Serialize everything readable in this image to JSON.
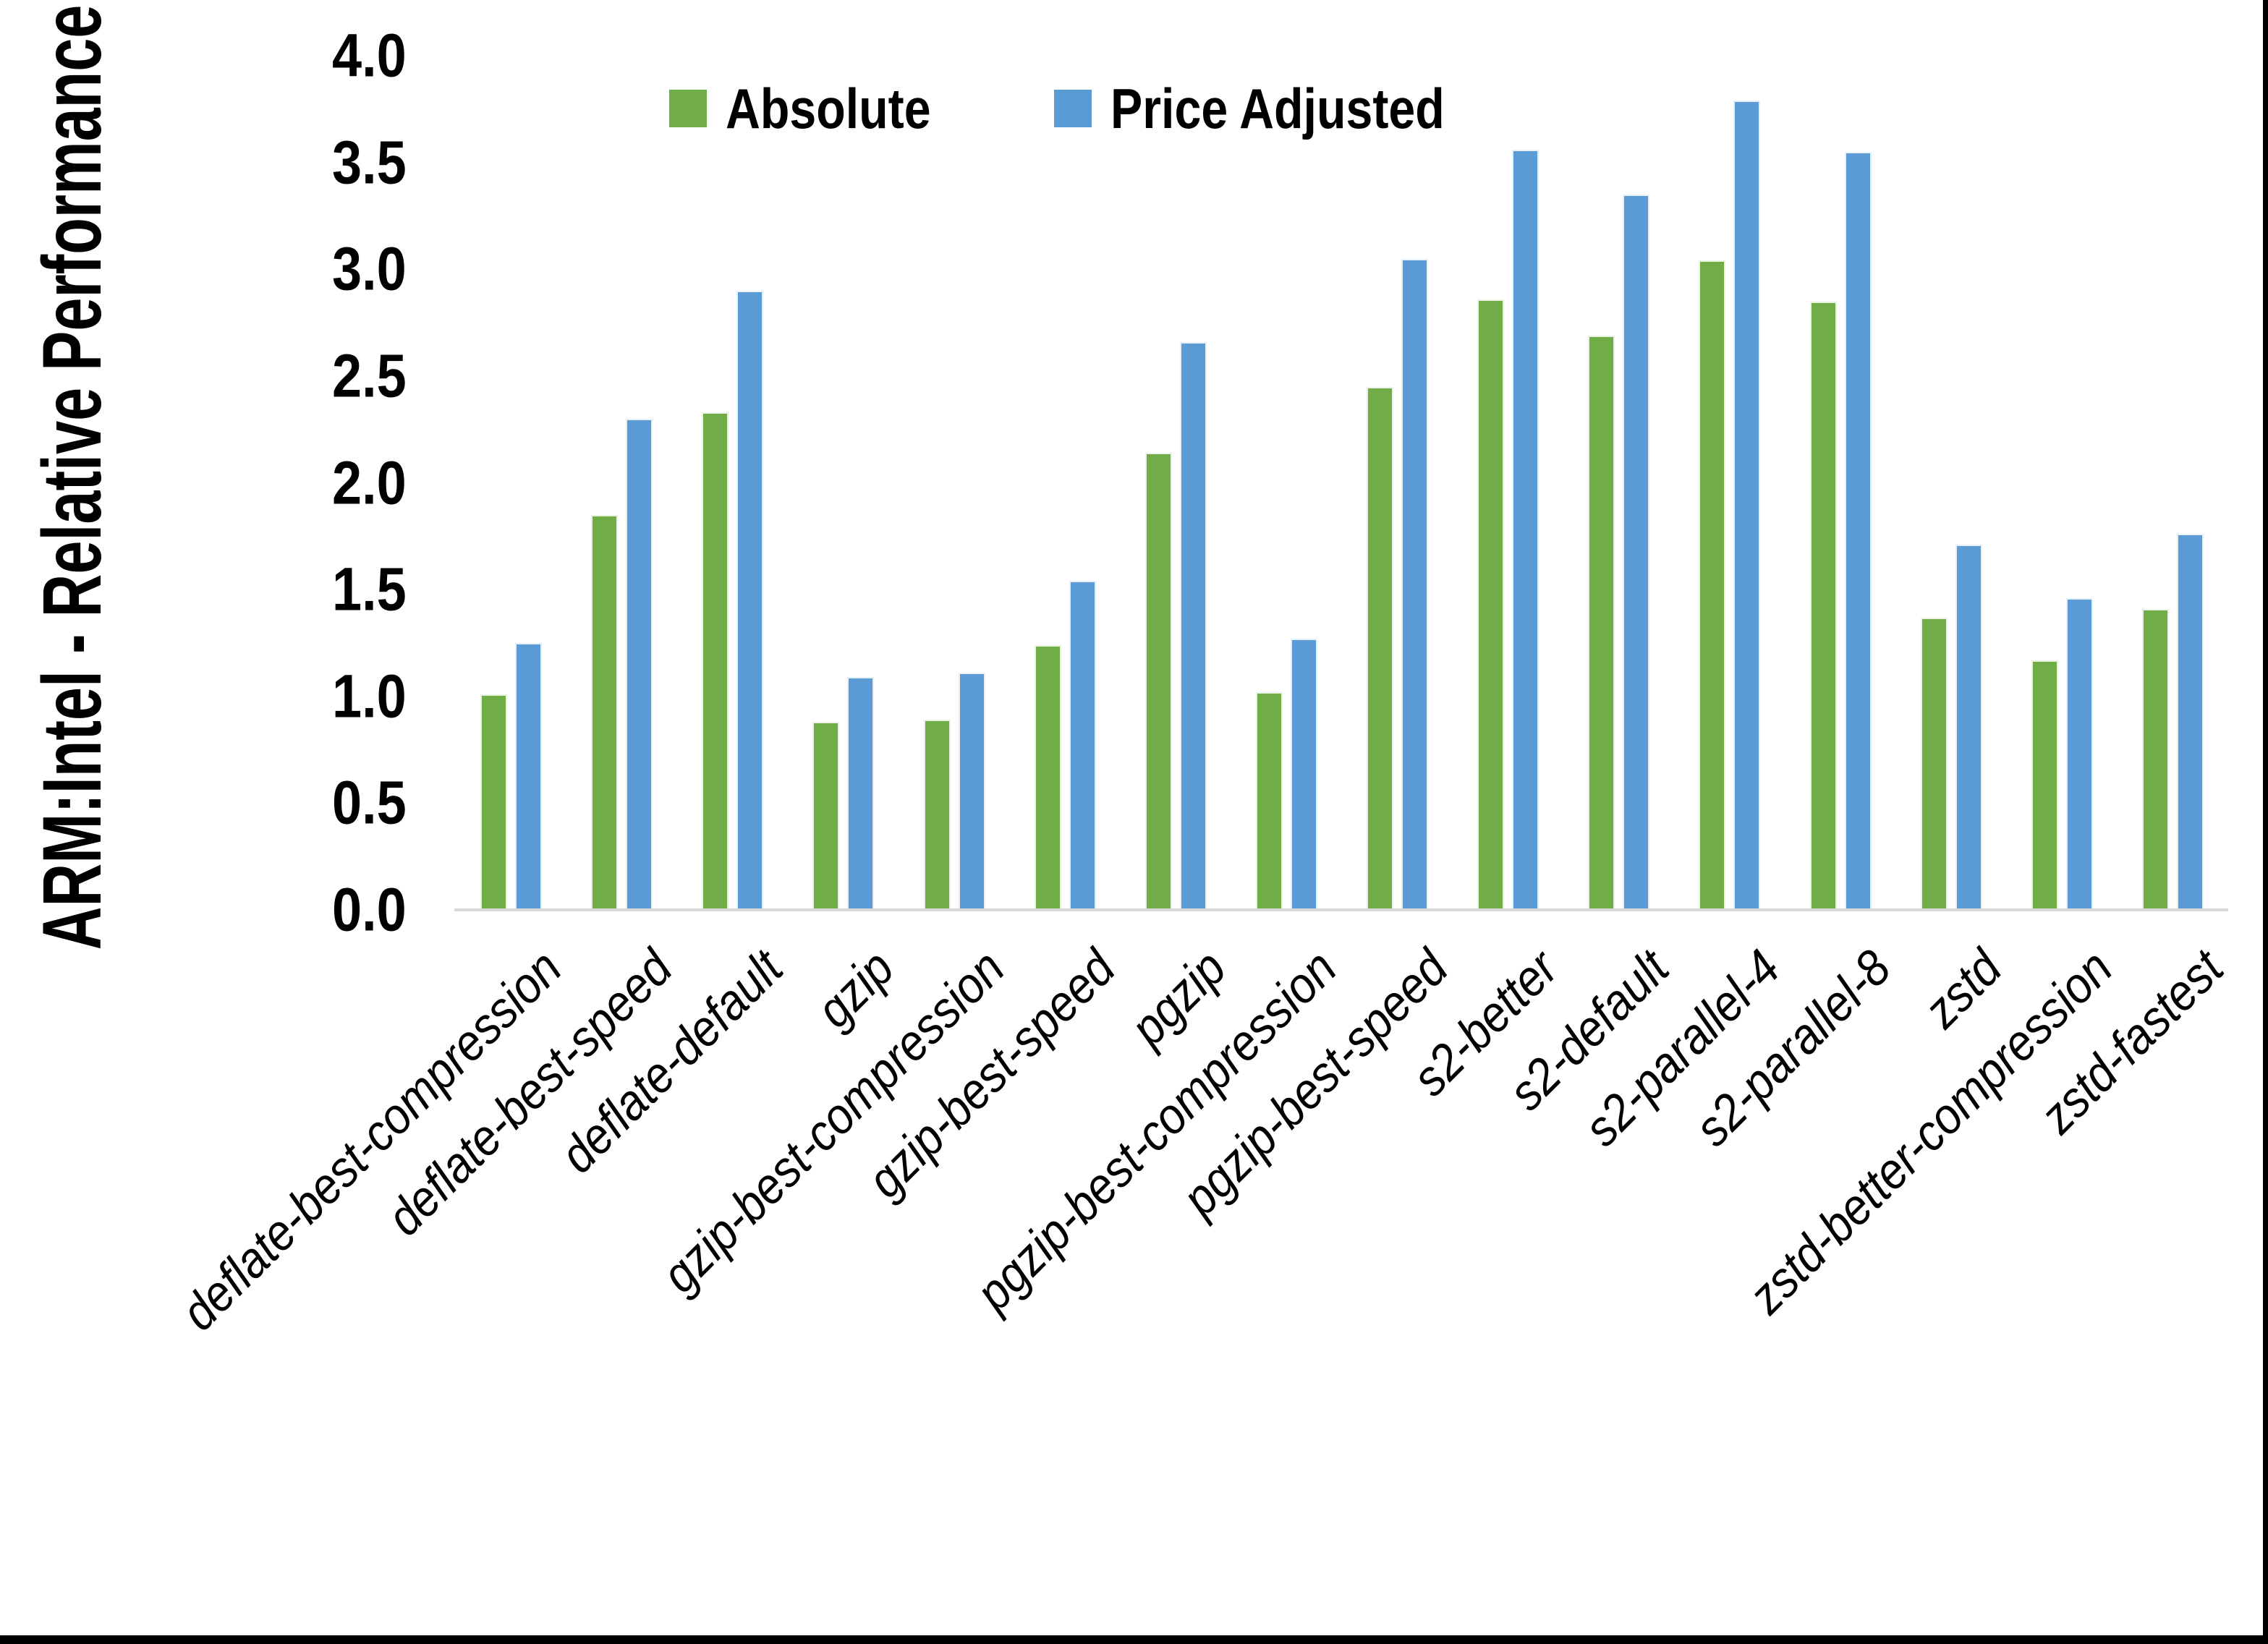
{
  "colors": {
    "background": "#FFFFFF",
    "text": "#000000",
    "axis_line": "#D9D9D9",
    "window_border": "#000000",
    "absolute_green": "#70AD47",
    "price_adjusted_blue": "#5B9BD5"
  },
  "legend": {
    "items": [
      {
        "label": "Absolute",
        "color": "#70AD47"
      },
      {
        "label": "Price Adjusted",
        "color": "#5B9BD5"
      }
    ]
  },
  "y_axis": {
    "title": "ARM:Intel - Relative Performance",
    "tick_labels": [
      "0.0",
      "0.5",
      "1.0",
      "1.5",
      "2.0",
      "2.5",
      "3.0",
      "3.5",
      "4.0"
    ]
  },
  "chart_data": {
    "type": "bar",
    "title": "",
    "xlabel": "",
    "ylabel": "ARM:Intel - Relative Performance",
    "ylim": [
      0.0,
      4.0
    ],
    "ytick_step": 0.5,
    "grid": false,
    "legend_position": "top-center",
    "categories": [
      "deflate-best-compression",
      "deflate-best-speed",
      "deflate-default",
      "gzip",
      "gzip-best-compression",
      "gzip-best-speed",
      "pgzip",
      "pgzip-best-compression",
      "pgzip-best-speed",
      "s2-better",
      "s2-default",
      "s2-parallel-4",
      "s2-parallel-8",
      "zstd",
      "zstd-better-compression",
      "zstd-fastest"
    ],
    "series": [
      {
        "name": "Absolute",
        "color": "#70AD47",
        "values": [
          1.01,
          1.85,
          2.33,
          0.88,
          0.89,
          1.24,
          2.14,
          1.02,
          2.45,
          2.86,
          2.69,
          3.04,
          2.85,
          1.37,
          1.17,
          1.41
        ]
      },
      {
        "name": "Price Adjusted",
        "color": "#5B9BD5",
        "values": [
          1.25,
          2.3,
          2.9,
          1.09,
          1.11,
          1.54,
          2.66,
          1.27,
          3.05,
          3.56,
          3.35,
          3.79,
          3.55,
          1.71,
          1.46,
          1.76
        ]
      }
    ]
  }
}
